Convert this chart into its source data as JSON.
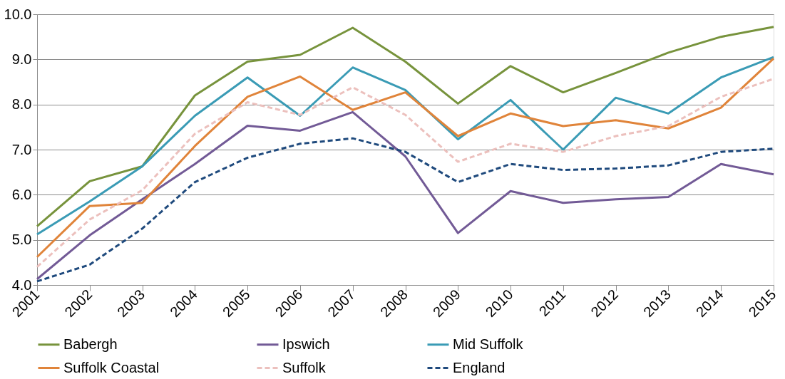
{
  "chart_data": {
    "type": "line",
    "categories": [
      "2001",
      "2002",
      "2003",
      "2004",
      "2005",
      "2006",
      "2007",
      "2008",
      "2009",
      "2010",
      "2011",
      "2012",
      "2013",
      "2014",
      "2015"
    ],
    "series": [
      {
        "name": "Babergh",
        "color": "#77933c",
        "line_style": "solid",
        "values": [
          5.3,
          6.3,
          6.63,
          8.2,
          8.95,
          9.1,
          9.7,
          8.95,
          8.02,
          8.85,
          8.27,
          8.7,
          9.15,
          9.5,
          9.72
        ]
      },
      {
        "name": "Ipswich",
        "color": "#725a96",
        "line_style": "solid",
        "values": [
          4.13,
          5.1,
          5.9,
          6.68,
          7.53,
          7.42,
          7.83,
          6.85,
          5.15,
          6.08,
          5.82,
          5.9,
          5.95,
          6.68,
          6.45
        ]
      },
      {
        "name": "Mid Suffolk",
        "color": "#3a9bb5",
        "line_style": "solid",
        "values": [
          5.12,
          5.85,
          6.63,
          7.75,
          8.6,
          7.75,
          8.82,
          8.32,
          7.23,
          8.1,
          7.0,
          8.15,
          7.8,
          8.6,
          9.05
        ]
      },
      {
        "name": "Suffolk Coastal",
        "color": "#e0843a",
        "line_style": "solid",
        "values": [
          4.62,
          5.75,
          5.82,
          7.08,
          8.17,
          8.62,
          7.88,
          8.27,
          7.3,
          7.8,
          7.52,
          7.65,
          7.47,
          7.93,
          9.02
        ]
      },
      {
        "name": "Suffolk",
        "color": "#ecc0bd",
        "line_style": "dashed",
        "values": [
          4.4,
          5.45,
          6.1,
          7.35,
          8.05,
          7.77,
          8.38,
          7.77,
          6.73,
          7.13,
          6.95,
          7.3,
          7.52,
          8.17,
          8.57
        ]
      },
      {
        "name": "England",
        "color": "#1f4a7d",
        "line_style": "dashed",
        "values": [
          4.08,
          4.45,
          5.25,
          6.28,
          6.82,
          7.13,
          7.25,
          6.95,
          6.28,
          6.68,
          6.55,
          6.58,
          6.65,
          6.95,
          7.02
        ]
      }
    ],
    "ylim": [
      4,
      10
    ],
    "yticks": [
      {
        "value": 4,
        "label": "4.0"
      },
      {
        "value": 5,
        "label": "5.0"
      },
      {
        "value": 6,
        "label": "6.0"
      },
      {
        "value": 7,
        "label": "7.0"
      },
      {
        "value": 8,
        "label": "8.0"
      },
      {
        "value": 9,
        "label": "9.0"
      },
      {
        "value": 10,
        "label": "10.0"
      }
    ],
    "grid": "y",
    "legend": "bottom"
  }
}
